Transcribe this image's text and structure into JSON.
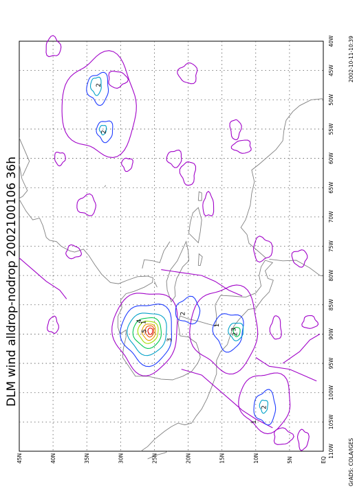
{
  "title": "DLM wind alldrop-nodrop 2002100106 36h",
  "timestamp": "2002-10-11-10:39",
  "credit": "GrADS: COLA/IGES",
  "axes": {
    "lat_labels": [
      "45N",
      "40N",
      "35N",
      "30N",
      "25N",
      "20N",
      "15N",
      "10N",
      "5N",
      "EQ"
    ],
    "lon_labels": [
      "40W",
      "45W",
      "50W",
      "55W",
      "60W",
      "65W",
      "70W",
      "75W",
      "80W",
      "85W",
      "90W",
      "95W",
      "100W",
      "105W",
      "110W"
    ]
  },
  "contour_labels": [
    {
      "text": "2",
      "lat": 33.0,
      "lon": -47.5
    },
    {
      "text": "2",
      "lat": 32.2,
      "lon": -55.5
    },
    {
      "text": "1",
      "lat": 26.3,
      "lon": -88.0
    },
    {
      "text": "1",
      "lat": 15.5,
      "lon": -88.5
    },
    {
      "text": "2",
      "lat": 12.8,
      "lon": -90.0
    },
    {
      "text": "3",
      "lat": 13.0,
      "lon": -89.2
    },
    {
      "text": "4",
      "lat": 27.0,
      "lon": -87.8
    },
    {
      "text": "5",
      "lat": 26.2,
      "lon": -89.5
    },
    {
      "text": "3",
      "lat": 22.5,
      "lon": -91.0
    },
    {
      "text": "2",
      "lat": 20.5,
      "lon": -86.5
    },
    {
      "text": "2",
      "lat": 8.5,
      "lon": -102.5
    },
    {
      "text": "1",
      "lat": 10.0,
      "lon": -105.0
    }
  ],
  "colors": {
    "c1": "#a000c8",
    "c2": "#1e3cff",
    "c3": "#00a0c8",
    "c4": "#00c850",
    "c5": "#a0dc00",
    "c6": "#e6a000",
    "c7": "#f05000",
    "c8": "#e60000",
    "coast": "#808080",
    "grid": "#555555"
  }
}
